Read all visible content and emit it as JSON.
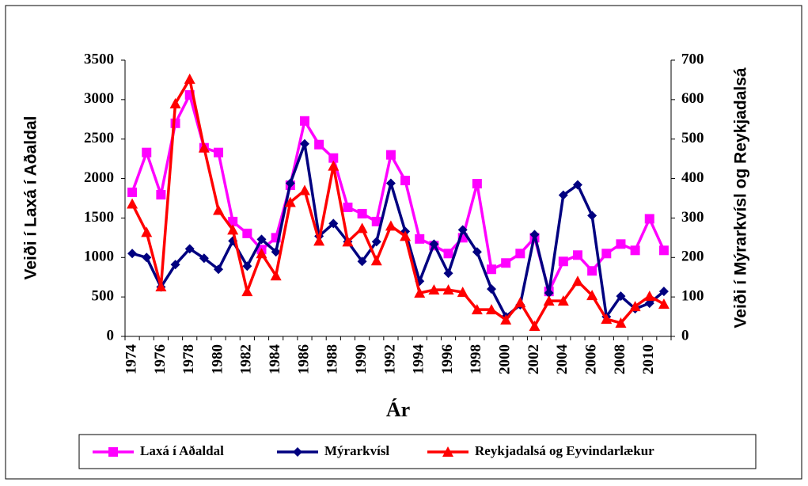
{
  "chart_data": {
    "type": "line",
    "x_label": "Ár",
    "y_label": "Veiði í Laxá í Aðaldal",
    "y2_label": "Veiði í Mýrarkvísl og Reykjadalsá",
    "categories": [
      "1974",
      null,
      "1976",
      null,
      "1978",
      null,
      "1980",
      null,
      "1982",
      null,
      "1984",
      null,
      "1986",
      null,
      "1988",
      null,
      "1990",
      null,
      "1992",
      null,
      "1994",
      null,
      "1996",
      null,
      "1998",
      null,
      "2000",
      null,
      "2002",
      null,
      "2004",
      null,
      "2006",
      null,
      "2008",
      null,
      "2010",
      null
    ],
    "ylim": [
      0,
      3500
    ],
    "yticks": [
      0,
      500,
      1000,
      1500,
      2000,
      2500,
      3000,
      3500
    ],
    "y2lim": [
      0,
      700
    ],
    "y2ticks": [
      0,
      100,
      200,
      300,
      400,
      500,
      600,
      700
    ],
    "legend": "bottom",
    "series": [
      {
        "name": "Laxá í Aðaldal",
        "color": "#ff00ff",
        "marker": "square",
        "values": [
          1825,
          2330,
          1795,
          2700,
          3060,
          2390,
          2330,
          1455,
          1305,
          1100,
          1250,
          1915,
          2730,
          2430,
          2260,
          1635,
          1555,
          1455,
          2300,
          1975,
          1235,
          1150,
          1050,
          1250,
          1935,
          850,
          930,
          1050,
          1250,
          570,
          950,
          1030,
          830,
          1050,
          1170,
          1090,
          1490,
          1090
        ]
      },
      {
        "name": "Mýrarkvísl",
        "color": "#000080",
        "marker": "diamond",
        "axis": "y2",
        "values": [
          210,
          200,
          125,
          182,
          222,
          198,
          170,
          242,
          178,
          246,
          214,
          388,
          488,
          254,
          286,
          240,
          190,
          240,
          388,
          266,
          140,
          234,
          160,
          270,
          214,
          120,
          50,
          80,
          258,
          110,
          358,
          384,
          306,
          50,
          102,
          70,
          84,
          114
        ]
      },
      {
        "name": "Reykjadalsá og Eyvindarlækur",
        "color": "#ff0000",
        "marker": "triangle",
        "axis": "y2",
        "values": [
          336,
          264,
          126,
          590,
          652,
          478,
          320,
          270,
          114,
          210,
          154,
          340,
          370,
          242,
          432,
          240,
          274,
          192,
          280,
          254,
          110,
          118,
          118,
          112,
          68,
          68,
          42,
          86,
          26,
          90,
          90,
          140,
          104,
          44,
          34,
          76,
          102,
          82
        ]
      }
    ]
  }
}
